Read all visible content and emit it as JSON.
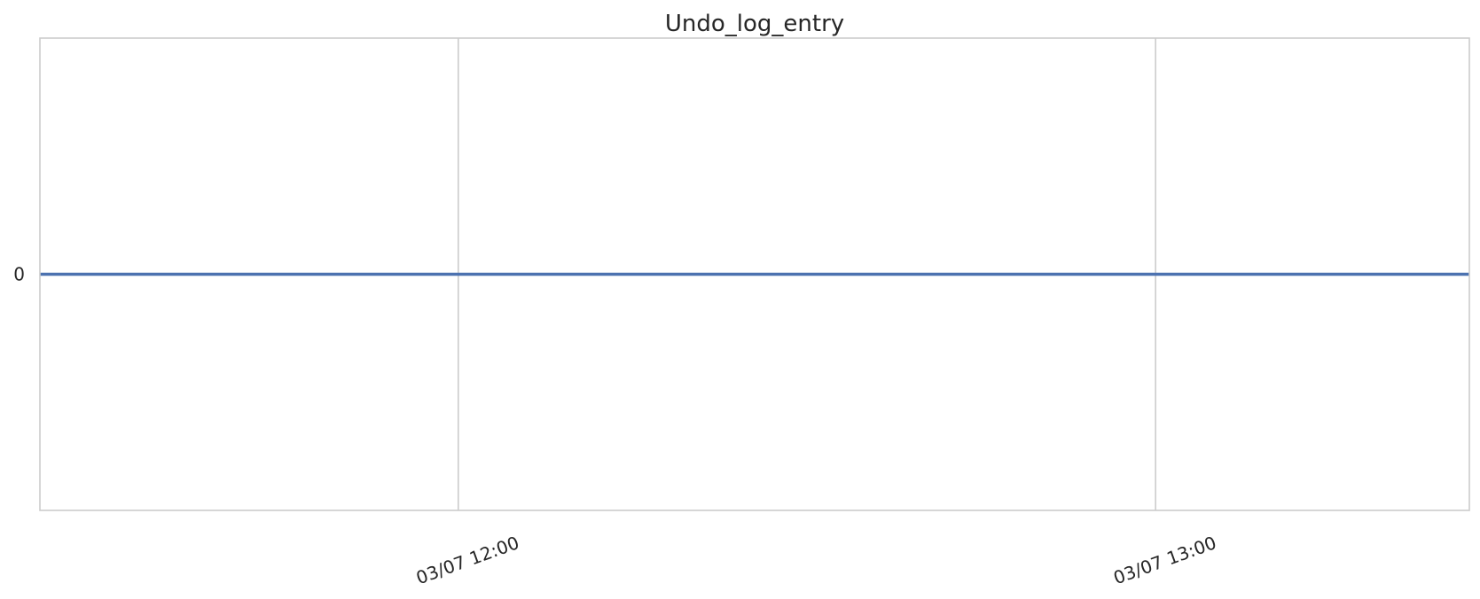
{
  "chart_data": {
    "type": "line",
    "title": "Undo_log_entry",
    "xlabel": "",
    "ylabel": "",
    "x_range": [
      "03/07 11:24",
      "03/07 13:27"
    ],
    "x_ticks": [
      {
        "value": "03/07 12:00",
        "label": "03/07 12:00"
      },
      {
        "value": "03/07 13:00",
        "label": "03/07 13:00"
      }
    ],
    "y_range": [
      -0.055,
      0.055
    ],
    "y_ticks": [
      {
        "value": 0,
        "label": "0"
      }
    ],
    "grid": {
      "x": true,
      "y": false
    },
    "series": [
      {
        "color": "#4c72b0",
        "points": [
          {
            "x": "03/07 11:24",
            "y": 0
          },
          {
            "x": "03/07 13:27",
            "y": 0
          }
        ]
      }
    ]
  }
}
